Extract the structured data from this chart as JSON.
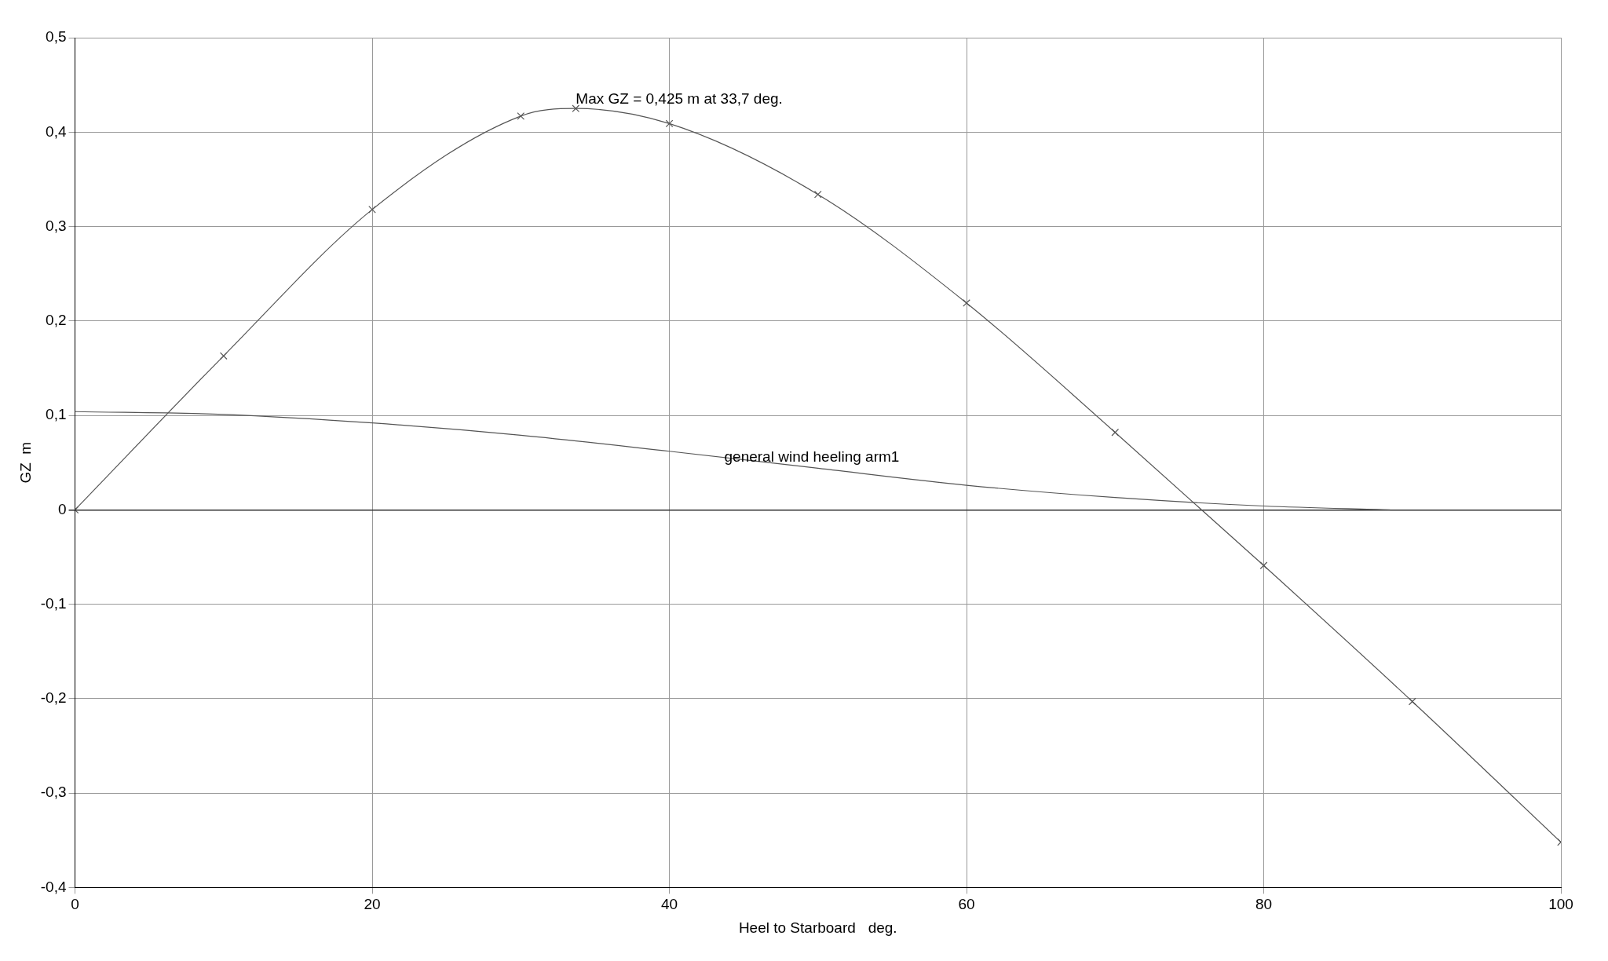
{
  "chart_data": {
    "type": "line",
    "xlabel": "Heel to Starboard   deg.",
    "ylabel": "GZ  m",
    "xlim": [
      0,
      100
    ],
    "xticks": [
      0,
      20,
      40,
      60,
      80,
      100
    ],
    "ylim": [
      -0.4,
      0.5
    ],
    "yticks": [
      {
        "value": -0.4,
        "label": "-0,4"
      },
      {
        "value": -0.3,
        "label": "-0,3"
      },
      {
        "value": -0.2,
        "label": "-0,2"
      },
      {
        "value": -0.1,
        "label": "-0,1"
      },
      0,
      {
        "value": 0.1,
        "label": "0,1"
      },
      {
        "value": 0.2,
        "label": "0,2"
      },
      {
        "value": 0.3,
        "label": "0,3"
      },
      {
        "value": 0.4,
        "label": "0,4"
      },
      {
        "value": 0.5,
        "label": "0,5"
      }
    ],
    "grid": true,
    "legend": false,
    "line_style": "solid",
    "series": [
      {
        "color": "#555555",
        "marker": "cross",
        "x": [
          0,
          10,
          20,
          30,
          33.7,
          40,
          50,
          60,
          70,
          80,
          90,
          100
        ],
        "values": [
          0,
          0.163,
          0.318,
          0.417,
          0.425,
          0.409,
          0.334,
          0.219,
          0.082,
          -0.059,
          -0.203,
          -0.352
        ]
      },
      {
        "name": "general wind heeling arm1",
        "color": "#555555",
        "marker": "none",
        "x": [
          0,
          10,
          20,
          30,
          40,
          50,
          60,
          70,
          80,
          88.5
        ],
        "values": [
          0.104,
          0.101,
          0.092,
          0.079,
          0.062,
          0.044,
          0.026,
          0.013,
          0.004,
          0.0
        ]
      }
    ],
    "annotations": [
      {
        "text": "Max GZ = 0,425 m at 33,7 deg.",
        "x": 33.7,
        "y": 0.425
      }
    ]
  }
}
